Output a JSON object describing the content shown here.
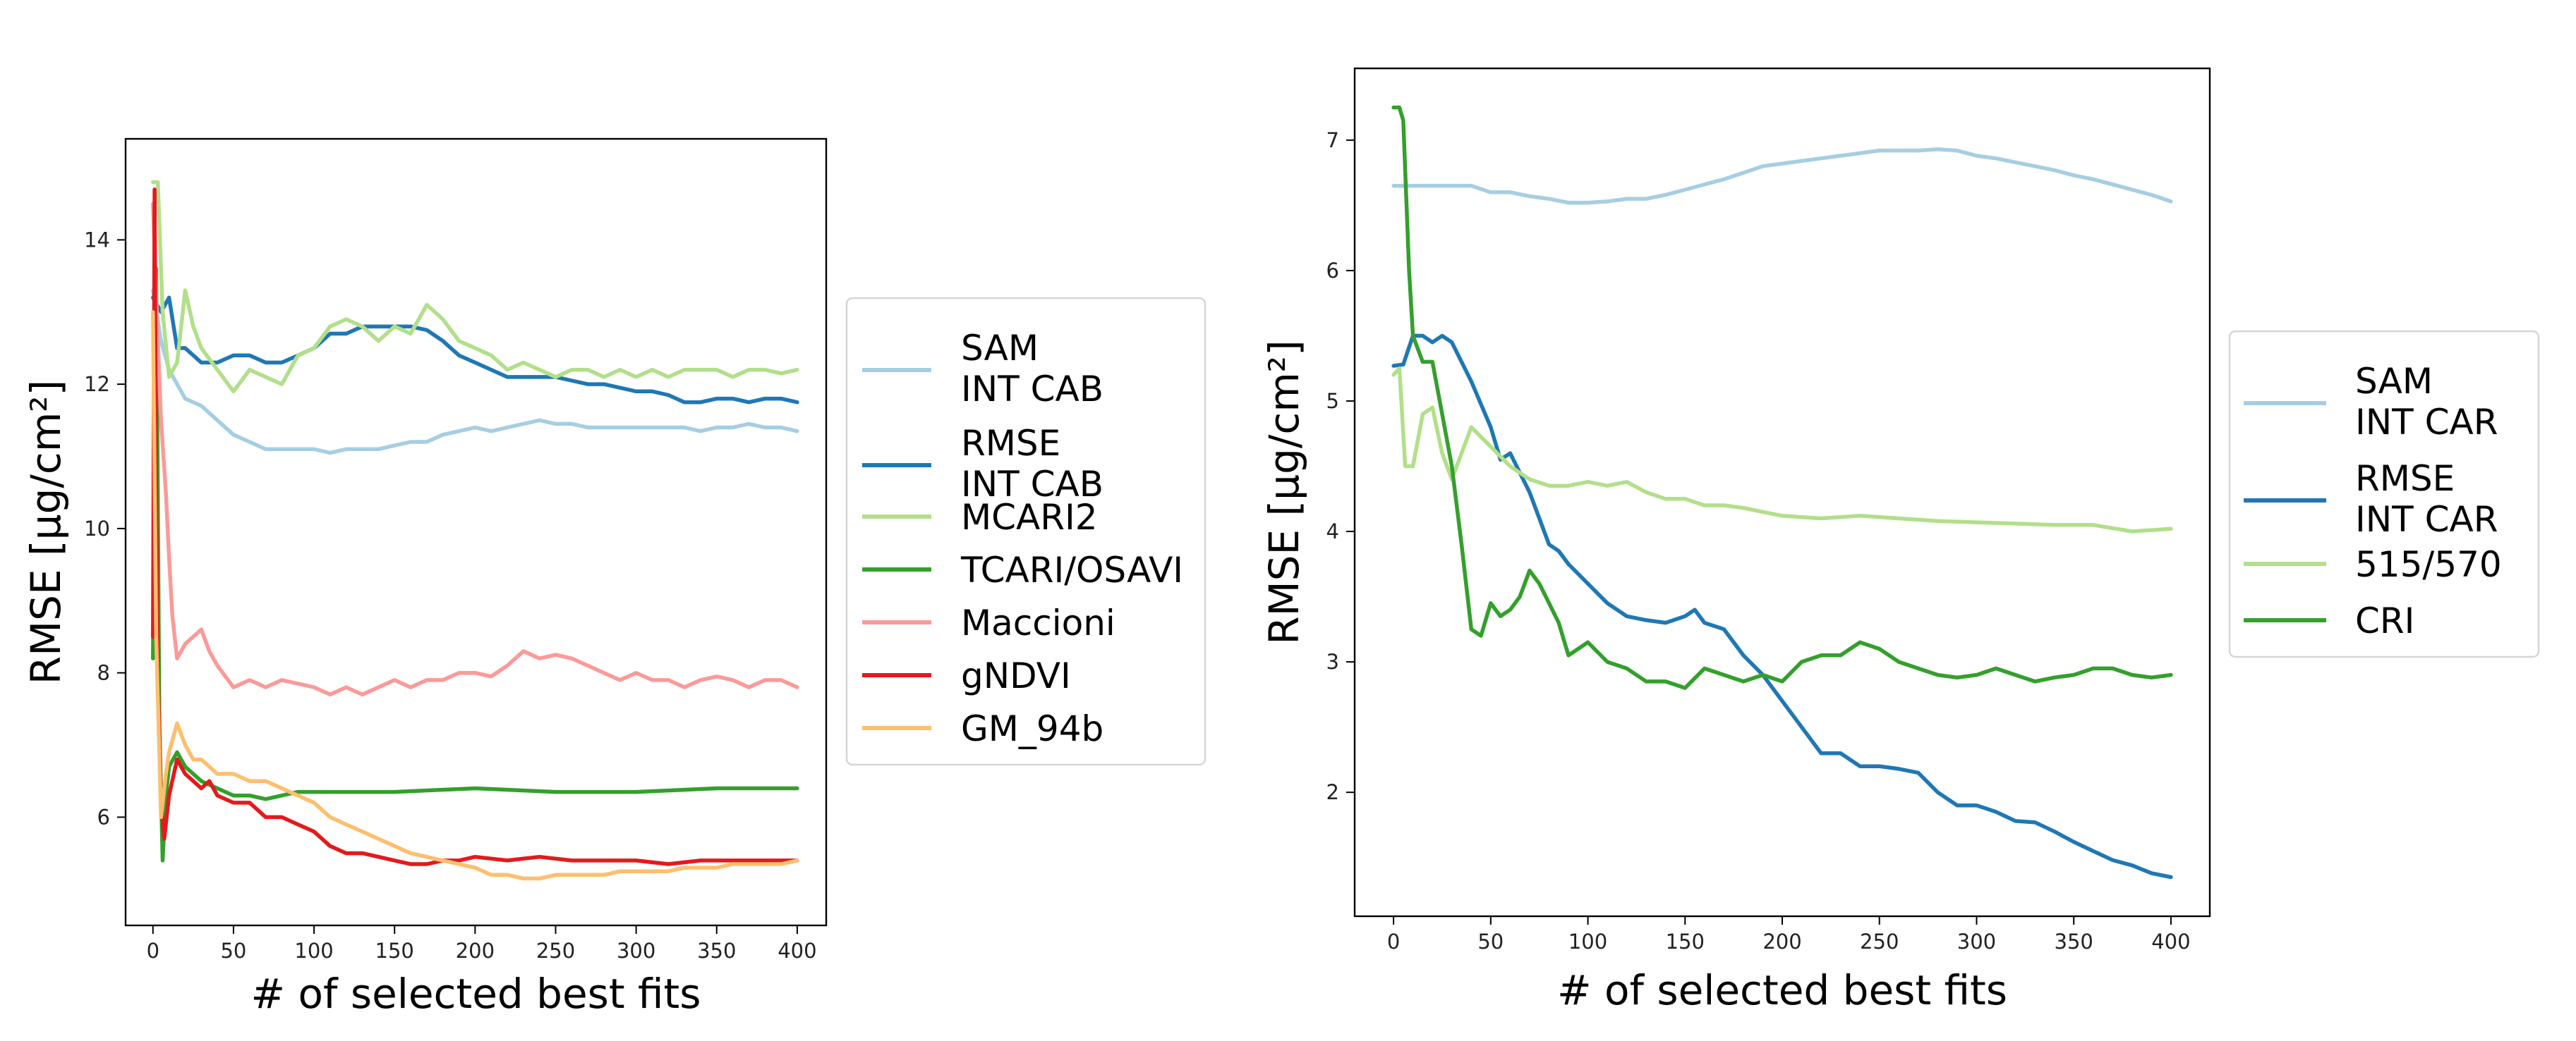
{
  "chart_data": [
    {
      "type": "line",
      "xlabel": "# of selected best fits",
      "ylabel": "RMSE [μg/cm²]",
      "xlim": [
        -17,
        418
      ],
      "ylim": [
        4.5,
        15.4
      ],
      "xticks": [
        0,
        50,
        100,
        150,
        200,
        250,
        300,
        350,
        400
      ],
      "yticks": [
        6,
        8,
        10,
        12,
        14
      ],
      "legend_position": "right-outside",
      "series": [
        {
          "name": "SAM\nINT CAB",
          "color": "#a6cee3",
          "x": [
            0,
            5,
            10,
            20,
            30,
            40,
            50,
            60,
            70,
            80,
            90,
            100,
            110,
            120,
            130,
            140,
            150,
            160,
            170,
            180,
            190,
            200,
            210,
            220,
            230,
            240,
            250,
            260,
            270,
            280,
            290,
            300,
            310,
            320,
            330,
            340,
            350,
            360,
            370,
            380,
            390,
            400
          ],
          "y": [
            13.3,
            12.6,
            12.2,
            11.8,
            11.7,
            11.5,
            11.3,
            11.2,
            11.1,
            11.1,
            11.1,
            11.1,
            11.05,
            11.1,
            11.1,
            11.1,
            11.15,
            11.2,
            11.2,
            11.3,
            11.35,
            11.4,
            11.35,
            11.4,
            11.45,
            11.5,
            11.45,
            11.45,
            11.4,
            11.4,
            11.4,
            11.4,
            11.4,
            11.4,
            11.4,
            11.35,
            11.4,
            11.4,
            11.45,
            11.4,
            11.4,
            11.35
          ]
        },
        {
          "name": "RMSE\nINT CAB",
          "color": "#1f78b4",
          "x": [
            0,
            5,
            10,
            15,
            20,
            30,
            40,
            50,
            60,
            70,
            80,
            90,
            100,
            110,
            120,
            130,
            140,
            150,
            160,
            170,
            180,
            190,
            200,
            210,
            220,
            230,
            240,
            250,
            260,
            270,
            280,
            290,
            300,
            310,
            320,
            330,
            340,
            350,
            360,
            370,
            380,
            390,
            400
          ],
          "y": [
            13.2,
            13.0,
            13.2,
            12.5,
            12.5,
            12.3,
            12.3,
            12.4,
            12.4,
            12.3,
            12.3,
            12.4,
            12.5,
            12.7,
            12.7,
            12.8,
            12.8,
            12.8,
            12.8,
            12.75,
            12.6,
            12.4,
            12.3,
            12.2,
            12.1,
            12.1,
            12.1,
            12.1,
            12.05,
            12.0,
            12.0,
            11.95,
            11.9,
            11.9,
            11.85,
            11.75,
            11.75,
            11.8,
            11.8,
            11.75,
            11.8,
            11.8,
            11.75
          ]
        },
        {
          "name": "MCARI2",
          "color": "#b2df8a",
          "x": [
            0,
            3,
            6,
            10,
            15,
            20,
            25,
            30,
            40,
            50,
            60,
            70,
            80,
            90,
            100,
            110,
            120,
            130,
            140,
            150,
            160,
            170,
            180,
            190,
            200,
            210,
            220,
            230,
            240,
            250,
            260,
            270,
            280,
            290,
            300,
            310,
            320,
            330,
            340,
            350,
            360,
            370,
            380,
            390,
            400
          ],
          "y": [
            14.8,
            14.8,
            13.0,
            12.1,
            12.3,
            13.3,
            12.8,
            12.5,
            12.2,
            11.9,
            12.2,
            12.1,
            12.0,
            12.4,
            12.5,
            12.8,
            12.9,
            12.8,
            12.6,
            12.8,
            12.7,
            13.1,
            12.9,
            12.6,
            12.5,
            12.4,
            12.2,
            12.3,
            12.2,
            12.1,
            12.2,
            12.2,
            12.1,
            12.2,
            12.1,
            12.2,
            12.1,
            12.2,
            12.2,
            12.2,
            12.1,
            12.2,
            12.2,
            12.15,
            12.2
          ]
        },
        {
          "name": "TCARI/OSAVI",
          "color": "#33a02c",
          "x": [
            0,
            2,
            4,
            6,
            8,
            10,
            15,
            20,
            30,
            40,
            50,
            60,
            70,
            80,
            90,
            100,
            120,
            150,
            200,
            250,
            300,
            350,
            400
          ],
          "y": [
            8.2,
            13.6,
            7.3,
            5.4,
            6.3,
            6.7,
            6.9,
            6.7,
            6.5,
            6.4,
            6.3,
            6.3,
            6.25,
            6.3,
            6.35,
            6.35,
            6.35,
            6.35,
            6.4,
            6.35,
            6.35,
            6.4,
            6.4
          ]
        },
        {
          "name": "Maccioni",
          "color": "#fb9a99",
          "x": [
            0,
            2,
            5,
            8,
            10,
            12,
            15,
            20,
            25,
            30,
            35,
            40,
            50,
            60,
            70,
            80,
            90,
            100,
            110,
            120,
            130,
            140,
            150,
            160,
            170,
            180,
            190,
            200,
            210,
            220,
            230,
            240,
            250,
            260,
            270,
            280,
            290,
            300,
            310,
            320,
            330,
            340,
            350,
            360,
            370,
            380,
            390,
            400
          ],
          "y": [
            14.5,
            13.2,
            11.5,
            10.5,
            9.6,
            8.8,
            8.2,
            8.4,
            8.5,
            8.6,
            8.3,
            8.1,
            7.8,
            7.9,
            7.8,
            7.9,
            7.85,
            7.8,
            7.7,
            7.8,
            7.7,
            7.8,
            7.9,
            7.8,
            7.9,
            7.9,
            8.0,
            8.0,
            7.95,
            8.1,
            8.3,
            8.2,
            8.25,
            8.2,
            8.1,
            8.0,
            7.9,
            8.0,
            7.9,
            7.9,
            7.8,
            7.9,
            7.95,
            7.9,
            7.8,
            7.9,
            7.9,
            7.8
          ]
        },
        {
          "name": "gNDVI",
          "color": "#e31a1c",
          "x": [
            0,
            1,
            2,
            3,
            5,
            7,
            10,
            15,
            20,
            25,
            30,
            35,
            40,
            50,
            60,
            70,
            80,
            90,
            100,
            110,
            120,
            130,
            140,
            150,
            160,
            170,
            180,
            190,
            200,
            220,
            240,
            260,
            280,
            300,
            320,
            340,
            360,
            380,
            400
          ],
          "y": [
            8.5,
            14.7,
            10.5,
            8.0,
            6.2,
            5.7,
            6.3,
            6.8,
            6.6,
            6.5,
            6.4,
            6.5,
            6.3,
            6.2,
            6.2,
            6.0,
            6.0,
            5.9,
            5.8,
            5.6,
            5.5,
            5.5,
            5.45,
            5.4,
            5.35,
            5.35,
            5.4,
            5.4,
            5.45,
            5.4,
            5.45,
            5.4,
            5.4,
            5.4,
            5.35,
            5.4,
            5.4,
            5.4,
            5.4
          ]
        },
        {
          "name": "GM_94b",
          "color": "#fdbf6f",
          "x": [
            0,
            2,
            5,
            8,
            10,
            15,
            20,
            25,
            30,
            40,
            50,
            60,
            70,
            80,
            90,
            100,
            110,
            120,
            130,
            140,
            150,
            160,
            170,
            180,
            190,
            200,
            210,
            220,
            230,
            240,
            250,
            260,
            270,
            280,
            290,
            300,
            310,
            320,
            330,
            340,
            350,
            360,
            370,
            380,
            390,
            400
          ],
          "y": [
            13.0,
            8.5,
            6.0,
            6.6,
            6.9,
            7.3,
            7.0,
            6.8,
            6.8,
            6.6,
            6.6,
            6.5,
            6.5,
            6.4,
            6.3,
            6.2,
            6.0,
            5.9,
            5.8,
            5.7,
            5.6,
            5.5,
            5.45,
            5.4,
            5.35,
            5.3,
            5.2,
            5.2,
            5.15,
            5.15,
            5.2,
            5.2,
            5.2,
            5.2,
            5.25,
            5.25,
            5.25,
            5.25,
            5.3,
            5.3,
            5.3,
            5.35,
            5.35,
            5.35,
            5.35,
            5.4
          ]
        }
      ]
    },
    {
      "type": "line",
      "xlabel": "# of selected best fits",
      "ylabel": "RMSE [μg/cm²]",
      "xlim": [
        -20,
        420
      ],
      "ylim": [
        1.05,
        7.55
      ],
      "xticks": [
        0,
        50,
        100,
        150,
        200,
        250,
        300,
        350,
        400
      ],
      "yticks": [
        2,
        3,
        4,
        5,
        6,
        7
      ],
      "legend_position": "right-outside",
      "series": [
        {
          "name": "SAM\nINT CAR",
          "color": "#a6cee3",
          "x": [
            0,
            10,
            20,
            30,
            40,
            50,
            60,
            70,
            80,
            90,
            100,
            110,
            120,
            130,
            140,
            150,
            160,
            170,
            180,
            190,
            200,
            210,
            220,
            230,
            240,
            250,
            260,
            270,
            280,
            290,
            300,
            310,
            320,
            330,
            340,
            350,
            360,
            370,
            380,
            390,
            400
          ],
          "y": [
            6.65,
            6.65,
            6.65,
            6.65,
            6.65,
            6.6,
            6.6,
            6.57,
            6.55,
            6.52,
            6.52,
            6.53,
            6.55,
            6.55,
            6.58,
            6.62,
            6.66,
            6.7,
            6.75,
            6.8,
            6.82,
            6.84,
            6.86,
            6.88,
            6.9,
            6.92,
            6.92,
            6.92,
            6.93,
            6.92,
            6.88,
            6.86,
            6.83,
            6.8,
            6.77,
            6.73,
            6.7,
            6.66,
            6.62,
            6.58,
            6.53
          ]
        },
        {
          "name": "RMSE\nINT CAR",
          "color": "#1f78b4",
          "x": [
            0,
            5,
            10,
            15,
            20,
            25,
            30,
            40,
            50,
            55,
            60,
            65,
            70,
            75,
            80,
            85,
            90,
            100,
            110,
            120,
            130,
            140,
            150,
            155,
            160,
            170,
            180,
            190,
            200,
            210,
            220,
            230,
            240,
            250,
            260,
            270,
            280,
            290,
            300,
            310,
            320,
            330,
            340,
            350,
            360,
            370,
            380,
            390,
            400
          ],
          "y": [
            5.27,
            5.28,
            5.5,
            5.5,
            5.45,
            5.5,
            5.45,
            5.15,
            4.8,
            4.55,
            4.6,
            4.45,
            4.3,
            4.1,
            3.9,
            3.85,
            3.75,
            3.6,
            3.45,
            3.35,
            3.32,
            3.3,
            3.35,
            3.4,
            3.3,
            3.25,
            3.05,
            2.9,
            2.7,
            2.5,
            2.3,
            2.3,
            2.2,
            2.2,
            2.18,
            2.15,
            2.0,
            1.9,
            1.9,
            1.85,
            1.78,
            1.77,
            1.7,
            1.62,
            1.55,
            1.48,
            1.44,
            1.38,
            1.35
          ]
        },
        {
          "name": "515/570",
          "color": "#b2df8a",
          "x": [
            0,
            3,
            6,
            10,
            15,
            20,
            25,
            30,
            40,
            50,
            60,
            70,
            80,
            90,
            100,
            110,
            120,
            130,
            140,
            150,
            160,
            170,
            180,
            190,
            200,
            220,
            240,
            260,
            280,
            300,
            320,
            340,
            360,
            380,
            400
          ],
          "y": [
            5.2,
            5.25,
            4.5,
            4.5,
            4.9,
            4.95,
            4.6,
            4.4,
            4.8,
            4.65,
            4.5,
            4.4,
            4.35,
            4.35,
            4.38,
            4.35,
            4.38,
            4.3,
            4.25,
            4.25,
            4.2,
            4.2,
            4.18,
            4.15,
            4.12,
            4.1,
            4.12,
            4.1,
            4.08,
            4.07,
            4.06,
            4.05,
            4.05,
            4.0,
            4.02
          ]
        },
        {
          "name": "CRI",
          "color": "#33a02c",
          "x": [
            0,
            3,
            5,
            8,
            10,
            15,
            20,
            25,
            30,
            35,
            40,
            45,
            50,
            55,
            60,
            65,
            70,
            75,
            80,
            85,
            90,
            95,
            100,
            110,
            120,
            130,
            140,
            150,
            160,
            170,
            180,
            190,
            200,
            210,
            220,
            230,
            240,
            250,
            260,
            270,
            280,
            290,
            300,
            310,
            320,
            330,
            340,
            350,
            360,
            370,
            380,
            390,
            400
          ],
          "y": [
            7.25,
            7.25,
            7.15,
            6.0,
            5.5,
            5.3,
            5.3,
            4.9,
            4.5,
            3.9,
            3.25,
            3.2,
            3.45,
            3.35,
            3.4,
            3.5,
            3.7,
            3.6,
            3.45,
            3.3,
            3.05,
            3.1,
            3.15,
            3.0,
            2.95,
            2.85,
            2.85,
            2.8,
            2.95,
            2.9,
            2.85,
            2.9,
            2.85,
            3.0,
            3.05,
            3.05,
            3.15,
            3.1,
            3.0,
            2.95,
            2.9,
            2.88,
            2.9,
            2.95,
            2.9,
            2.85,
            2.88,
            2.9,
            2.95,
            2.95,
            2.9,
            2.88,
            2.9
          ]
        }
      ]
    }
  ]
}
